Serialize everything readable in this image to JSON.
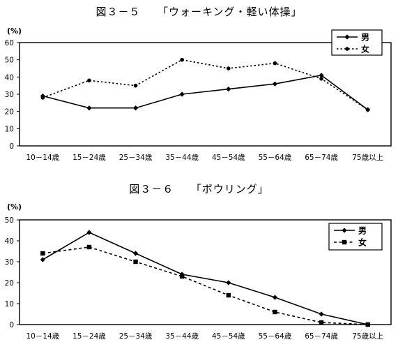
{
  "chart_data": [
    {
      "type": "line",
      "title": "図３－５　　「ウォーキング・軽い体操」",
      "ylabel": "(%)",
      "xlabel": "",
      "ylim": [
        0,
        60
      ],
      "yticks": [
        0,
        10,
        20,
        30,
        40,
        50,
        60
      ],
      "categories": [
        "10－14歳",
        "15－24歳",
        "25－34歳",
        "35－44歳",
        "45－54歳",
        "55－64歳",
        "65－74歳",
        "75歳以上"
      ],
      "series": [
        {
          "name": "男",
          "values": [
            29,
            22,
            22,
            30,
            33,
            36,
            41,
            21
          ],
          "line": "solid",
          "marker": "diamond",
          "color": "#000000"
        },
        {
          "name": "女",
          "values": [
            28,
            38,
            35,
            50,
            45,
            48,
            39,
            21
          ],
          "line": "dotted",
          "marker": "circle",
          "color": "#000000"
        }
      ],
      "grid": false,
      "legend": "top-right"
    },
    {
      "type": "line",
      "title": "図３－６　　「ボウリング」",
      "ylabel": "(%)",
      "xlabel": "",
      "ylim": [
        0,
        50
      ],
      "yticks": [
        0,
        10,
        20,
        30,
        40,
        50
      ],
      "categories": [
        "10－14歳",
        "15－24歳",
        "25－34歳",
        "35－44歳",
        "45－54歳",
        "55－64歳",
        "65－74歳",
        "75歳以上"
      ],
      "series": [
        {
          "name": "男",
          "values": [
            31,
            44,
            34,
            24,
            20,
            13,
            5,
            0
          ],
          "line": "solid",
          "marker": "diamond",
          "color": "#000000"
        },
        {
          "name": "女",
          "values": [
            34,
            37,
            30,
            23,
            14,
            6,
            1,
            0
          ],
          "line": "dashed",
          "marker": "square",
          "color": "#000000"
        }
      ],
      "grid": false,
      "legend": "top-right"
    }
  ]
}
